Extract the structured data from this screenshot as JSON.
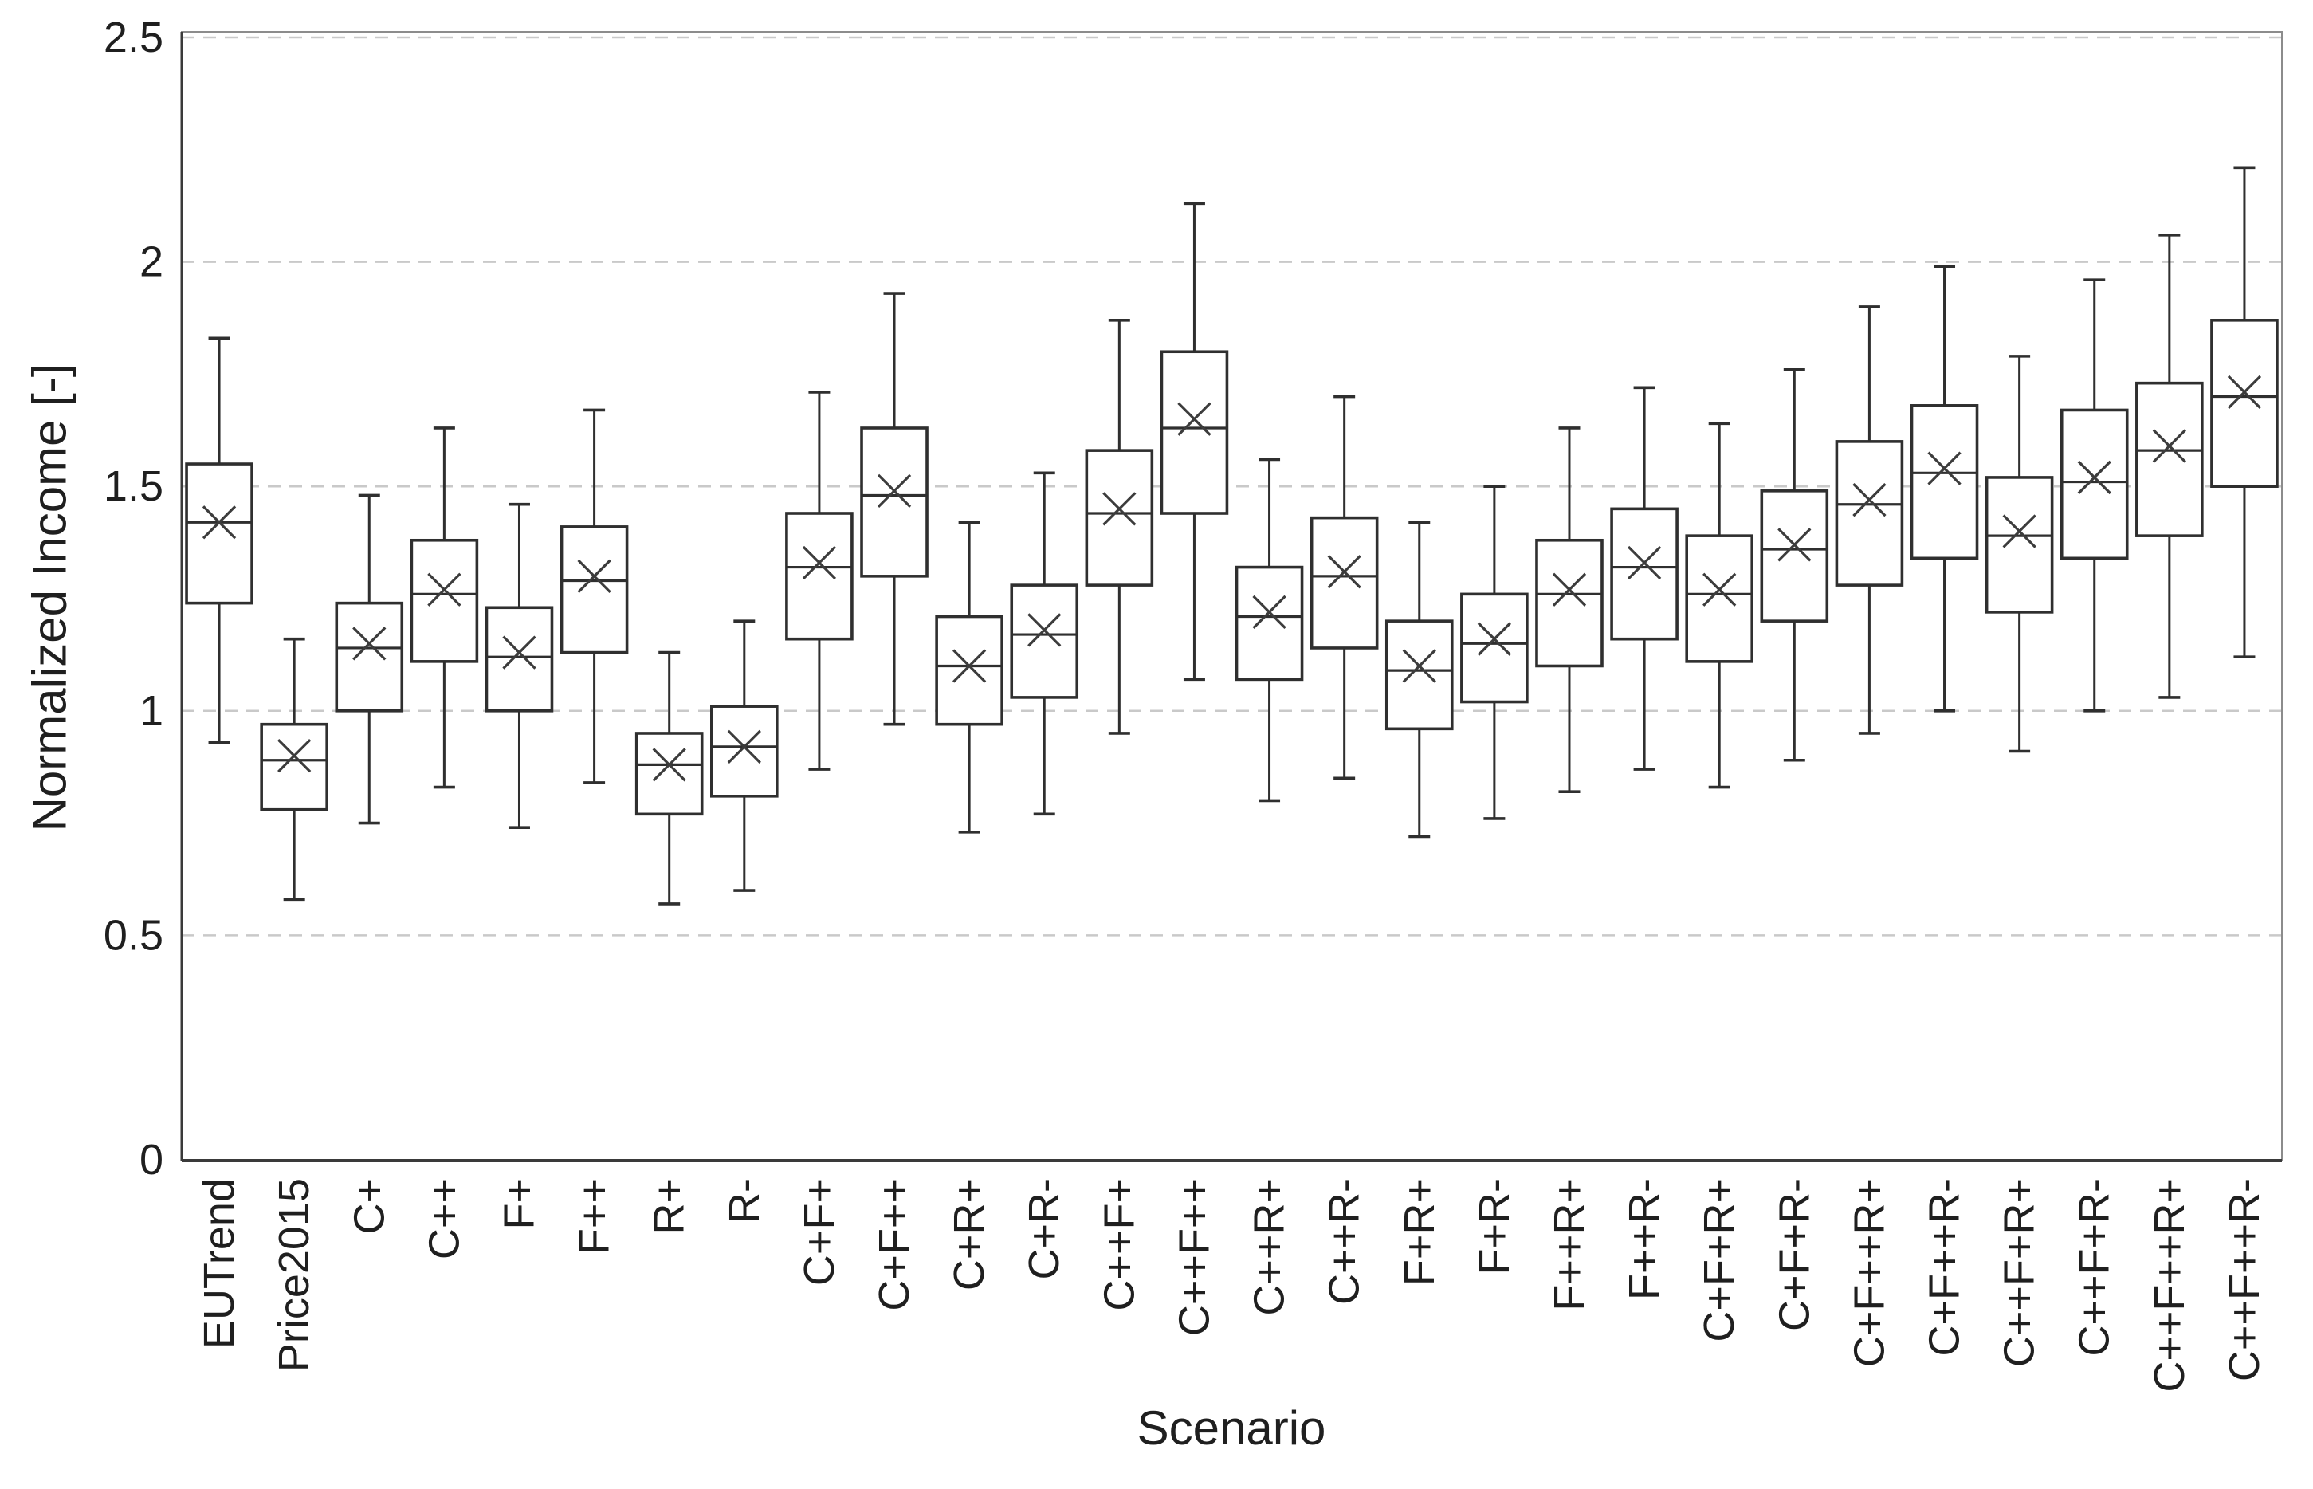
{
  "chart_data": {
    "type": "boxplot",
    "title": "",
    "xlabel": "Scenario",
    "ylabel": "Normalized Income [-]",
    "ylim": [
      0,
      2.5
    ],
    "yticks": [
      0,
      0.5,
      1,
      1.5,
      2,
      2.5
    ],
    "ytick_labels": [
      "0",
      "0.5",
      "1",
      "1.5",
      "2",
      "2.5"
    ],
    "grid": "horizontal dashed gridlines at every 0.5, no vertical gridlines",
    "legend": "none",
    "mean_marker": "x (cross marks the mean inside each box)",
    "categories": [
      "EUTrend",
      "Price2015",
      "C+",
      "C++",
      "F+",
      "F++",
      "R+",
      "R-",
      "C+F+",
      "C+F++",
      "C+R+",
      "C+R-",
      "C++F+",
      "C++F++",
      "C++R+",
      "C++R-",
      "F+R+",
      "F+R-",
      "F++R+",
      "F++R-",
      "C+F+R+",
      "C+F+R-",
      "C+F++R+",
      "C+F++R-",
      "C++F+R+",
      "C++F+R-",
      "C++F++R+",
      "C++F++R-"
    ],
    "boxes": [
      {
        "label": "EUTrend",
        "whisker_low": 0.93,
        "q1": 1.24,
        "median": 1.42,
        "mean": 1.42,
        "q3": 1.55,
        "whisker_high": 1.83
      },
      {
        "label": "Price2015",
        "whisker_low": 0.58,
        "q1": 0.78,
        "median": 0.89,
        "mean": 0.9,
        "q3": 0.97,
        "whisker_high": 1.16
      },
      {
        "label": "C+",
        "whisker_low": 0.75,
        "q1": 1.0,
        "median": 1.14,
        "mean": 1.15,
        "q3": 1.24,
        "whisker_high": 1.48
      },
      {
        "label": "C++",
        "whisker_low": 0.83,
        "q1": 1.11,
        "median": 1.26,
        "mean": 1.27,
        "q3": 1.38,
        "whisker_high": 1.63
      },
      {
        "label": "F+",
        "whisker_low": 0.74,
        "q1": 1.0,
        "median": 1.12,
        "mean": 1.13,
        "q3": 1.23,
        "whisker_high": 1.46
      },
      {
        "label": "F++",
        "whisker_low": 0.84,
        "q1": 1.13,
        "median": 1.29,
        "mean": 1.3,
        "q3": 1.41,
        "whisker_high": 1.67
      },
      {
        "label": "R+",
        "whisker_low": 0.57,
        "q1": 0.77,
        "median": 0.88,
        "mean": 0.88,
        "q3": 0.95,
        "whisker_high": 1.13
      },
      {
        "label": "R-",
        "whisker_low": 0.6,
        "q1": 0.81,
        "median": 0.92,
        "mean": 0.92,
        "q3": 1.01,
        "whisker_high": 1.2
      },
      {
        "label": "C+F+",
        "whisker_low": 0.87,
        "q1": 1.16,
        "median": 1.32,
        "mean": 1.33,
        "q3": 1.44,
        "whisker_high": 1.71
      },
      {
        "label": "C+F++",
        "whisker_low": 0.97,
        "q1": 1.3,
        "median": 1.48,
        "mean": 1.49,
        "q3": 1.63,
        "whisker_high": 1.93
      },
      {
        "label": "C+R+",
        "whisker_low": 0.73,
        "q1": 0.97,
        "median": 1.1,
        "mean": 1.1,
        "q3": 1.21,
        "whisker_high": 1.42
      },
      {
        "label": "C+R-",
        "whisker_low": 0.77,
        "q1": 1.03,
        "median": 1.17,
        "mean": 1.18,
        "q3": 1.28,
        "whisker_high": 1.53
      },
      {
        "label": "C++F+",
        "whisker_low": 0.95,
        "q1": 1.28,
        "median": 1.44,
        "mean": 1.45,
        "q3": 1.58,
        "whisker_high": 1.87
      },
      {
        "label": "C++F++",
        "whisker_low": 1.07,
        "q1": 1.44,
        "median": 1.63,
        "mean": 1.65,
        "q3": 1.8,
        "whisker_high": 2.13
      },
      {
        "label": "C++R+",
        "whisker_low": 0.8,
        "q1": 1.07,
        "median": 1.21,
        "mean": 1.22,
        "q3": 1.32,
        "whisker_high": 1.56
      },
      {
        "label": "C++R-",
        "whisker_low": 0.85,
        "q1": 1.14,
        "median": 1.3,
        "mean": 1.31,
        "q3": 1.43,
        "whisker_high": 1.7
      },
      {
        "label": "F+R+",
        "whisker_low": 0.72,
        "q1": 0.96,
        "median": 1.09,
        "mean": 1.1,
        "q3": 1.2,
        "whisker_high": 1.42
      },
      {
        "label": "F+R-",
        "whisker_low": 0.76,
        "q1": 1.02,
        "median": 1.15,
        "mean": 1.16,
        "q3": 1.26,
        "whisker_high": 1.5
      },
      {
        "label": "F++R+",
        "whisker_low": 0.82,
        "q1": 1.1,
        "median": 1.26,
        "mean": 1.27,
        "q3": 1.38,
        "whisker_high": 1.63
      },
      {
        "label": "F++R-",
        "whisker_low": 0.87,
        "q1": 1.16,
        "median": 1.32,
        "mean": 1.33,
        "q3": 1.45,
        "whisker_high": 1.72
      },
      {
        "label": "C+F+R+",
        "whisker_low": 0.83,
        "q1": 1.11,
        "median": 1.26,
        "mean": 1.27,
        "q3": 1.39,
        "whisker_high": 1.64
      },
      {
        "label": "C+F+R-",
        "whisker_low": 0.89,
        "q1": 1.2,
        "median": 1.36,
        "mean": 1.37,
        "q3": 1.49,
        "whisker_high": 1.76
      },
      {
        "label": "C+F++R+",
        "whisker_low": 0.95,
        "q1": 1.28,
        "median": 1.46,
        "mean": 1.47,
        "q3": 1.6,
        "whisker_high": 1.9
      },
      {
        "label": "C+F++R-",
        "whisker_low": 1.0,
        "q1": 1.34,
        "median": 1.53,
        "mean": 1.54,
        "q3": 1.68,
        "whisker_high": 1.99
      },
      {
        "label": "C++F+R+",
        "whisker_low": 0.91,
        "q1": 1.22,
        "median": 1.39,
        "mean": 1.4,
        "q3": 1.52,
        "whisker_high": 1.79
      },
      {
        "label": "C++F+R-",
        "whisker_low": 1.0,
        "q1": 1.34,
        "median": 1.51,
        "mean": 1.52,
        "q3": 1.67,
        "whisker_high": 1.96
      },
      {
        "label": "C++F++R+",
        "whisker_low": 1.03,
        "q1": 1.39,
        "median": 1.58,
        "mean": 1.59,
        "q3": 1.73,
        "whisker_high": 2.06
      },
      {
        "label": "C++F++R-",
        "whisker_low": 1.12,
        "q1": 1.5,
        "median": 1.7,
        "mean": 1.71,
        "q3": 1.87,
        "whisker_high": 2.21
      }
    ]
  },
  "colors": {
    "background": "#ffffff",
    "box_stroke": "#2f2f2f",
    "box_fill": "#ffffff",
    "median_line": "#2f2f2f",
    "mean_marker": "#3c3c3c",
    "whisker": "#2f2f2f",
    "gridline": "#c9c9c9",
    "plot_border": "#8c8c8c",
    "axis_line": "#3a3a3a",
    "text": "#1f1f1f"
  }
}
